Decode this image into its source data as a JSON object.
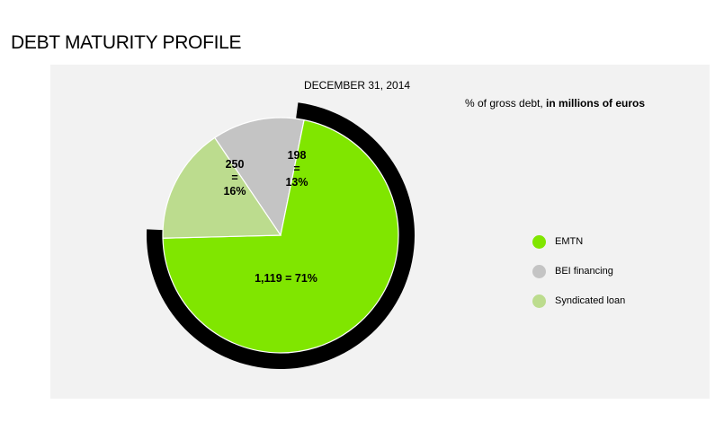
{
  "page": {
    "title": "DEBT MATURITY PROFILE"
  },
  "chart_data": {
    "type": "pie",
    "title": "DECEMBER 31, 2014",
    "units_prefix": "% of gross debt, ",
    "units_bold": "in millions of euros",
    "slices": [
      {
        "name": "EMTN",
        "value": 1119,
        "percent": 71,
        "color": "#80e600",
        "label_lines": [
          "1,119 = 71%"
        ]
      },
      {
        "name": "BEI financing",
        "value": 198,
        "percent": 13,
        "color": "#c4c4c4",
        "label_lines": [
          "198",
          "=",
          "13%"
        ]
      },
      {
        "name": "Syndicated loan",
        "value": 250,
        "percent": 16,
        "color": "#bcdc8e",
        "label_lines": [
          "250",
          "=",
          "16%"
        ]
      }
    ],
    "legend_position": "right"
  }
}
